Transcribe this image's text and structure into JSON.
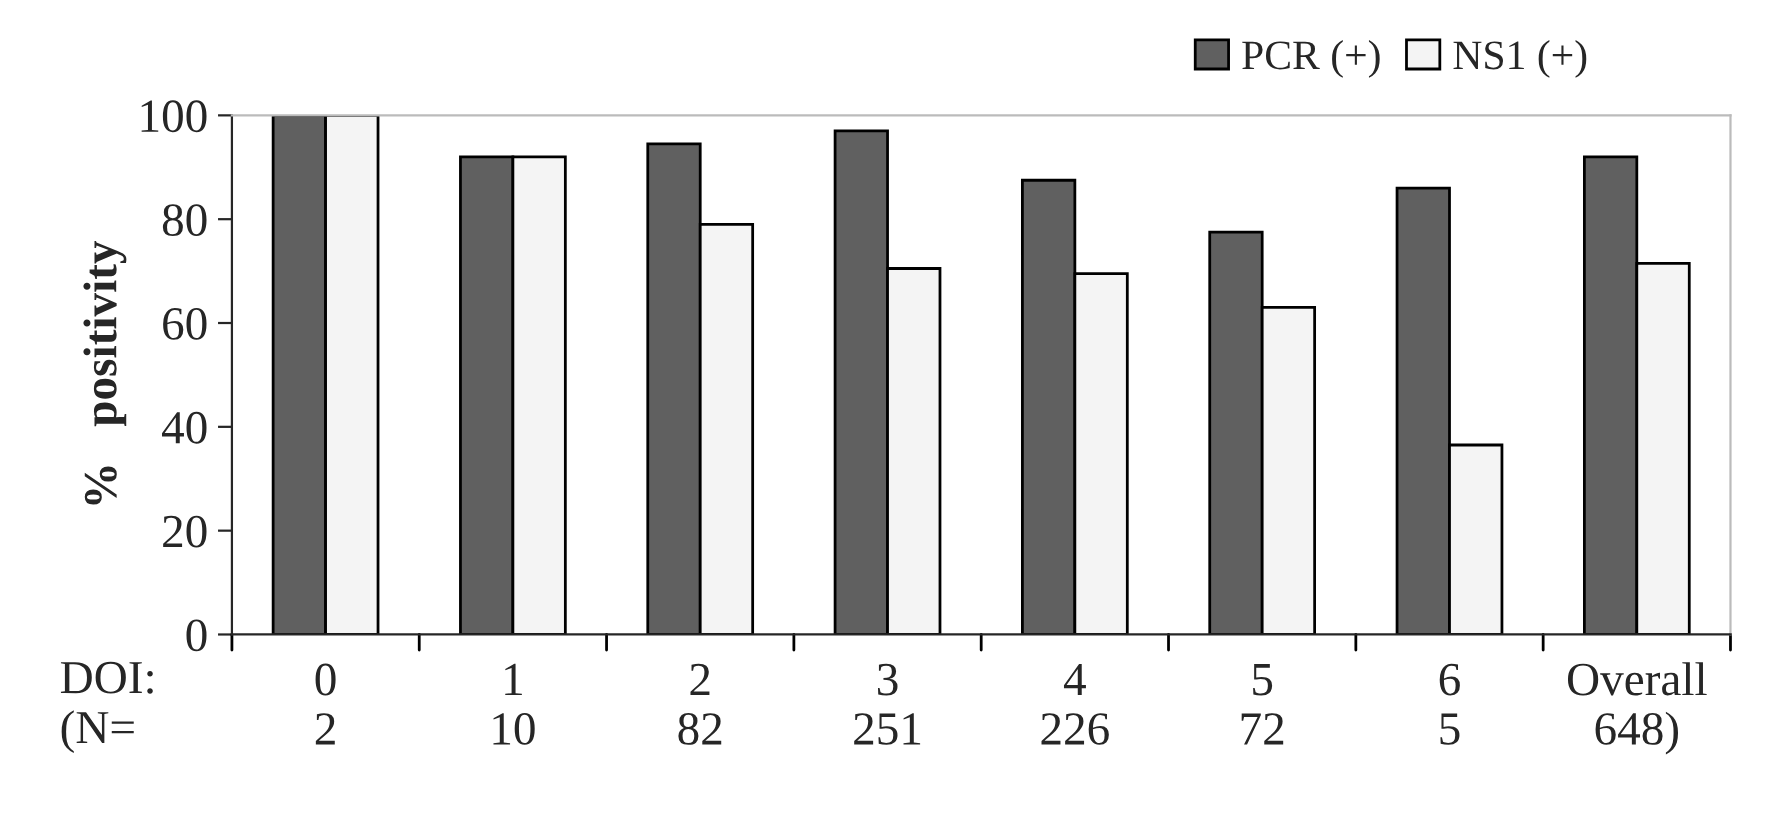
{
  "chart_data": {
    "type": "bar",
    "ylabel": "%   positivity",
    "categories": [
      "0\n2",
      "1\n10",
      "2\n82",
      "3\n251",
      "4\n226",
      "5\n72",
      "6\n5",
      "Overall\n648)"
    ],
    "series": [
      {
        "name": "PCR (+)",
        "color": "#606060",
        "values": [
          100,
          92,
          94.5,
          97,
          87.5,
          77.5,
          86,
          92
        ]
      },
      {
        "name": "NS1 (+)",
        "color": "#f4f4f4",
        "values": [
          100,
          92,
          79,
          70.5,
          69.5,
          63,
          36.5,
          71.5
        ]
      }
    ],
    "ylim": [
      0,
      100
    ],
    "yticks": [
      0,
      20,
      40,
      60,
      80,
      100
    ],
    "grid": false,
    "legend": "top right",
    "annotations": [
      "DOI:",
      "(N="
    ]
  }
}
